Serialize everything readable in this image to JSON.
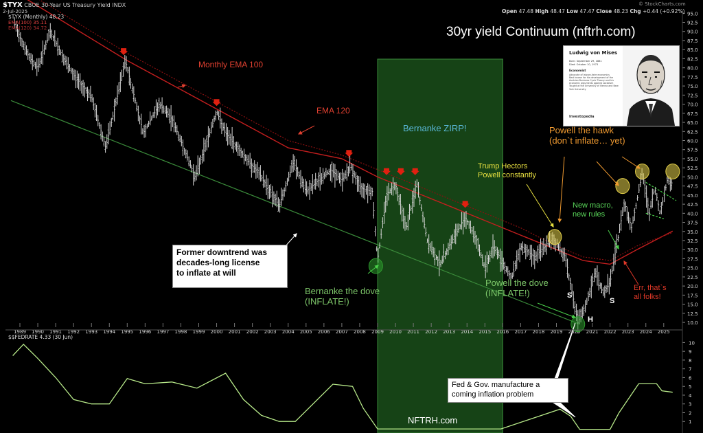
{
  "header": {
    "symbol": "$TYX",
    "name": "CBOE 30-Year US Treasury Yield INDX",
    "date": "2-Jul-2025",
    "watermark": "© StockCharts.com",
    "open_label": "Open",
    "open": "47.48",
    "high_label": "High",
    "high": "48.47",
    "low_label": "Low",
    "low": "47.47",
    "close_label": "Close",
    "close": "48.23",
    "chg_label": "Chg",
    "chg": "+0.44 (+0.92%)",
    "legend_main": "$TYX (Monthly) 48.23",
    "legend_ema100": "EMA(100) 35.11",
    "legend_ema120": "EMA(120) 34.72",
    "legend_fed": "$$FEDRATE 4.33 (30 Jun)"
  },
  "title": "30yr yield Continuum (nftrh.com)",
  "portrait": {
    "name": "Ludwig von Mises",
    "born": "Born: September 29, 1881",
    "died": "Died: October 10, 1973",
    "field_label": "Economist",
    "bullets": [
      "Advocate of laissez-faire economics",
      "Best known for his development of the Austrian Business Cycle Theory and his economic arguments against socialism",
      "Taught at the University of Vienna and New York University"
    ],
    "logo": "Investopedia"
  },
  "annotations": {
    "ema100": "Monthly EMA 100",
    "ema120": "EMA 120",
    "zirp": "Bernanke ZIRP!",
    "former_downtrend": [
      "Former downtrend was",
      "decades-long license",
      "to inflate at will"
    ],
    "bernanke_dove": [
      "Bernanke the dove",
      "(INFLATE!)"
    ],
    "powell_dove": [
      "Powell the dove",
      "(INFLATE!)"
    ],
    "trump": [
      "Trump Hectors",
      "Powell constantly"
    ],
    "powell_hawk": [
      "Powell the hawk",
      "(don`t inflate… yet)"
    ],
    "new_macro": [
      "New macro,",
      "new rules"
    ],
    "err": [
      "Err, that`s",
      "all folks!"
    ],
    "fed_gov": [
      "Fed & Gov. manufacture a",
      "coming inflation problem"
    ],
    "s1": "S",
    "s2": "S",
    "h": "H",
    "nftrh": "NFTRH.com"
  },
  "colors": {
    "background": "#000000",
    "price_bars": "#d8d8d8",
    "ema100": "#c41e1e",
    "ema120": "#8a1010",
    "trendline": "#3a8a3a",
    "zirp_zone": "#1e5a1e",
    "fedrate": "#b8ea8a",
    "arrows": "#e02010",
    "highlight_yellow": "#e6d24a",
    "highlight_green": "#2e9a2e"
  },
  "chart_data": [
    {
      "type": "ohlc",
      "title": "$TYX (Monthly) 48.23",
      "y_axis_ticks": [
        10.0,
        12.5,
        15.0,
        17.5,
        20.0,
        22.5,
        25.0,
        27.5,
        30.0,
        32.5,
        35.0,
        37.5,
        40.0,
        42.5,
        45.0,
        47.5,
        50.0,
        52.5,
        55.0,
        57.5,
        60.0,
        62.5,
        65.0,
        67.5,
        70.0,
        72.5,
        75.0,
        77.5,
        80.0,
        82.5,
        85.0,
        87.5,
        90.0,
        92.5,
        95.0
      ],
      "ylim": [
        8.5,
        96
      ],
      "x_ticks": [
        "1989",
        "1990",
        "1991",
        "1992",
        "1993",
        "1994",
        "1995",
        "1996",
        "1997",
        "1998",
        "1999",
        "2000",
        "2001",
        "2002",
        "2003",
        "2004",
        "2005",
        "2006",
        "2007",
        "2008",
        "2009",
        "2010",
        "2011",
        "2012",
        "2013",
        "2014",
        "2015",
        "2016",
        "2017",
        "2018",
        "2019",
        "2020",
        "2021",
        "2022",
        "2023",
        "2024",
        "2025"
      ],
      "price_path": [
        [
          1988.7,
          92
        ],
        [
          1989.5,
          83
        ],
        [
          1990.0,
          80
        ],
        [
          1990.7,
          90
        ],
        [
          1991.5,
          82
        ],
        [
          1992.0,
          78
        ],
        [
          1993.0,
          72
        ],
        [
          1993.8,
          58
        ],
        [
          1994.9,
          82
        ],
        [
          1995.9,
          62
        ],
        [
          1996.8,
          70
        ],
        [
          1997.5,
          66
        ],
        [
          1998.8,
          50
        ],
        [
          2000.0,
          68
        ],
        [
          2000.5,
          62
        ],
        [
          2001.5,
          56
        ],
        [
          2002.5,
          50
        ],
        [
          2003.5,
          42
        ],
        [
          2004.3,
          54
        ],
        [
          2005.0,
          46
        ],
        [
          2006.4,
          52
        ],
        [
          2007.0,
          49
        ],
        [
          2007.5,
          53
        ],
        [
          2008.0,
          47
        ],
        [
          2008.7,
          46
        ],
        [
          2009.0,
          27
        ],
        [
          2009.5,
          45
        ],
        [
          2010.0,
          48
        ],
        [
          2010.6,
          36
        ],
        [
          2011.2,
          48
        ],
        [
          2011.8,
          32
        ],
        [
          2012.5,
          26
        ],
        [
          2013.0,
          31
        ],
        [
          2013.9,
          39
        ],
        [
          2014.5,
          33
        ],
        [
          2015.0,
          25
        ],
        [
          2015.5,
          31
        ],
        [
          2016.5,
          22
        ],
        [
          2017.0,
          31
        ],
        [
          2017.8,
          28
        ],
        [
          2018.8,
          33
        ],
        [
          2019.5,
          28
        ],
        [
          2020.2,
          10
        ],
        [
          2020.6,
          14
        ],
        [
          2021.2,
          24
        ],
        [
          2021.6,
          18
        ],
        [
          2022.0,
          21
        ],
        [
          2022.8,
          43
        ],
        [
          2023.2,
          36
        ],
        [
          2023.8,
          51
        ],
        [
          2024.2,
          40
        ],
        [
          2024.5,
          47
        ],
        [
          2024.8,
          40
        ],
        [
          2025.2,
          49
        ],
        [
          2025.5,
          48.23
        ]
      ],
      "ema100_path": [
        [
          1989.0,
          100
        ],
        [
          1992.0,
          91
        ],
        [
          1995.0,
          82
        ],
        [
          1998.0,
          74
        ],
        [
          2001.0,
          66
        ],
        [
          2004.0,
          58
        ],
        [
          2007.0,
          55
        ],
        [
          2009.0,
          50
        ],
        [
          2011.0,
          46
        ],
        [
          2013.0,
          42
        ],
        [
          2015.0,
          38
        ],
        [
          2017.0,
          34
        ],
        [
          2019.0,
          30
        ],
        [
          2020.5,
          27
        ],
        [
          2022.0,
          26
        ],
        [
          2023.5,
          30
        ],
        [
          2025.5,
          35.11
        ]
      ],
      "ema120_path": [
        [
          1989.0,
          102
        ],
        [
          1992.0,
          93
        ],
        [
          1995.0,
          84
        ],
        [
          1998.0,
          76
        ],
        [
          2001.0,
          68
        ],
        [
          2004.0,
          60
        ],
        [
          2007.0,
          56
        ],
        [
          2009.0,
          52
        ],
        [
          2011.0,
          48
        ],
        [
          2013.0,
          44
        ],
        [
          2015.0,
          40
        ],
        [
          2017.0,
          36
        ],
        [
          2019.0,
          31
        ],
        [
          2020.5,
          28
        ],
        [
          2022.0,
          27
        ],
        [
          2023.5,
          31
        ],
        [
          2025.5,
          34.72
        ]
      ],
      "trendline": [
        [
          1988.5,
          71
        ],
        [
          2020.3,
          9.5
        ]
      ],
      "zirp_range": [
        2009.0,
        2016.0
      ],
      "red_arrow_years": [
        1994.8,
        2000.0,
        2007.4,
        2009.5,
        2010.3,
        2011.1,
        2013.9
      ],
      "red_arrow_values": [
        83.5,
        69.5,
        55.5,
        50.5,
        50.5,
        50.5,
        41.5
      ],
      "highlights": [
        {
          "x": 2008.9,
          "y": 25.5,
          "color": "green"
        },
        {
          "x": 2020.2,
          "y": 9.5,
          "color": "green"
        },
        {
          "x": 2018.9,
          "y": 33.5,
          "color": "yellow"
        },
        {
          "x": 2022.7,
          "y": 47.5,
          "color": "yellow"
        },
        {
          "x": 2023.8,
          "y": 51.5,
          "color": "yellow"
        },
        {
          "x": 2025.5,
          "y": 51.5,
          "color": "yellow"
        }
      ]
    },
    {
      "type": "line",
      "title": "$$FEDRATE 4.33 (30 Jun)",
      "y_axis_ticks": [
        1,
        2,
        3,
        4,
        5,
        6,
        7,
        8,
        9,
        10
      ],
      "ylim": [
        0,
        10.5
      ],
      "values": [
        [
          1988.6,
          8.5
        ],
        [
          1989.2,
          9.8
        ],
        [
          1990.0,
          8.2
        ],
        [
          1991.0,
          6.0
        ],
        [
          1992.0,
          3.5
        ],
        [
          1993.0,
          3.0
        ],
        [
          1994.0,
          3.0
        ],
        [
          1995.0,
          5.9
        ],
        [
          1996.0,
          5.3
        ],
        [
          1997.5,
          5.5
        ],
        [
          1998.9,
          4.8
        ],
        [
          2000.5,
          6.5
        ],
        [
          2001.5,
          3.5
        ],
        [
          2002.5,
          1.7
        ],
        [
          2003.5,
          1.0
        ],
        [
          2004.4,
          1.0
        ],
        [
          2006.5,
          5.25
        ],
        [
          2007.6,
          5.0
        ],
        [
          2008.2,
          2.5
        ],
        [
          2009.0,
          0.15
        ],
        [
          2015.9,
          0.15
        ],
        [
          2017.0,
          0.9
        ],
        [
          2019.2,
          2.4
        ],
        [
          2019.8,
          1.6
        ],
        [
          2020.3,
          0.1
        ],
        [
          2022.0,
          0.1
        ],
        [
          2022.5,
          2.0
        ],
        [
          2023.6,
          5.3
        ],
        [
          2024.6,
          5.3
        ],
        [
          2024.9,
          4.5
        ],
        [
          2025.5,
          4.33
        ]
      ]
    }
  ]
}
